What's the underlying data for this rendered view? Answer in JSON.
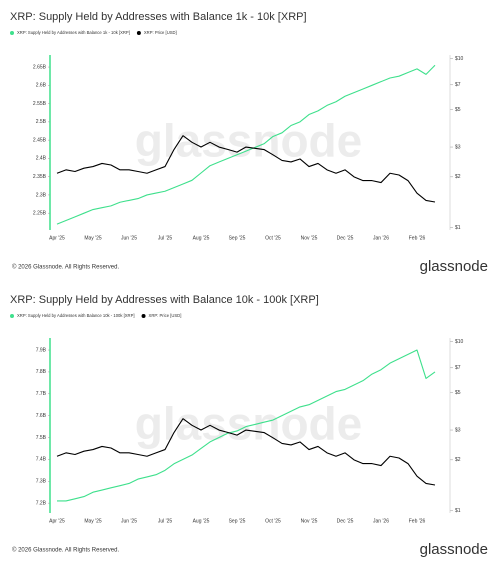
{
  "chart_data": [
    {
      "type": "line",
      "title": "XRP: Supply Held by Addresses with Balance 1k - 10k [XRP]",
      "categories": [
        "Apr '25",
        null,
        null,
        null,
        "May '25",
        null,
        null,
        null,
        "Jun '25",
        null,
        null,
        null,
        "Jul '25",
        null,
        null,
        null,
        "Aug '25",
        null,
        null,
        null,
        "Sep '25",
        null,
        null,
        null,
        "Oct '25",
        null,
        null,
        null,
        "Nov '25",
        null,
        null,
        null,
        "Dec '25",
        null,
        null,
        null,
        "Jan '26",
        null,
        null,
        null,
        "Feb '26",
        null,
        null
      ],
      "series": [
        {
          "name": "XRP: Supply Held by Addresses with Balance 1k - 10k [XRP]",
          "color": "#3ee08c",
          "axis": "y",
          "values": [
            2.22,
            2.23,
            2.24,
            2.25,
            2.26,
            2.265,
            2.27,
            2.28,
            2.285,
            2.29,
            2.3,
            2.305,
            2.31,
            2.32,
            2.33,
            2.34,
            2.36,
            2.38,
            2.39,
            2.4,
            2.41,
            2.42,
            2.43,
            2.44,
            2.46,
            2.47,
            2.49,
            2.5,
            2.52,
            2.53,
            2.545,
            2.555,
            2.57,
            2.58,
            2.59,
            2.6,
            2.61,
            2.62,
            2.625,
            2.635,
            2.645,
            2.63,
            2.655
          ]
        },
        {
          "name": "XRP: Price [USD]",
          "color": "#000000",
          "axis": "y2",
          "values": [
            2.1,
            2.2,
            2.15,
            2.25,
            2.3,
            2.4,
            2.35,
            2.2,
            2.2,
            2.15,
            2.1,
            2.2,
            2.3,
            2.9,
            3.5,
            3.2,
            3.0,
            3.2,
            3.0,
            2.9,
            2.8,
            3.0,
            2.95,
            2.9,
            2.7,
            2.5,
            2.45,
            2.55,
            2.3,
            2.4,
            2.2,
            2.1,
            2.2,
            2.0,
            1.9,
            1.9,
            1.85,
            2.1,
            2.05,
            1.9,
            1.6,
            1.45,
            1.42
          ]
        }
      ],
      "ylim": [
        2.204,
        2.683
      ],
      "yticks": [
        {
          "value": 2.25,
          "label": "2.25B"
        },
        {
          "value": 2.3,
          "label": "2.3B"
        },
        {
          "value": 2.35,
          "label": "2.35B"
        },
        {
          "value": 2.4,
          "label": "2.4B"
        },
        {
          "value": 2.45,
          "label": "2.45B"
        },
        {
          "value": 2.5,
          "label": "2.5B"
        },
        {
          "value": 2.55,
          "label": "2.55B"
        },
        {
          "value": 2.6,
          "label": "2.6B"
        },
        {
          "value": 2.65,
          "label": "2.65B"
        }
      ],
      "y2lim": [
        0.97,
        10.5
      ],
      "y2_log": true,
      "y2ticks": [
        {
          "value": 1,
          "label": "$1"
        },
        {
          "value": 2,
          "label": "$2"
        },
        {
          "value": 3,
          "label": "$3"
        },
        {
          "value": 5,
          "label": "$5"
        },
        {
          "value": 7,
          "label": "$7"
        },
        {
          "value": 10,
          "label": "$10"
        }
      ],
      "watermark": "glassnode",
      "footer": "© 2026 Glassnode. All Rights Reserved.",
      "brand": "glassnode"
    },
    {
      "type": "line",
      "title": "XRP: Supply Held by Addresses with Balance 10k - 100k [XRP]",
      "categories": [
        "Apr '25",
        null,
        null,
        null,
        "May '25",
        null,
        null,
        null,
        "Jun '25",
        null,
        null,
        null,
        "Jul '25",
        null,
        null,
        null,
        "Aug '25",
        null,
        null,
        null,
        "Sep '25",
        null,
        null,
        null,
        "Oct '25",
        null,
        null,
        null,
        "Nov '25",
        null,
        null,
        null,
        "Dec '25",
        null,
        null,
        null,
        "Jan '26",
        null,
        null,
        null,
        "Feb '26",
        null,
        null
      ],
      "series": [
        {
          "name": "XRP: Supply Held by Addresses with Balance 10k - 100k [XRP]",
          "color": "#3ee08c",
          "axis": "y",
          "values": [
            7.21,
            7.21,
            7.22,
            7.23,
            7.25,
            7.26,
            7.27,
            7.28,
            7.29,
            7.31,
            7.32,
            7.33,
            7.35,
            7.38,
            7.4,
            7.42,
            7.45,
            7.48,
            7.5,
            7.52,
            7.53,
            7.55,
            7.56,
            7.57,
            7.58,
            7.6,
            7.62,
            7.64,
            7.65,
            7.67,
            7.69,
            7.71,
            7.72,
            7.74,
            7.76,
            7.79,
            7.81,
            7.84,
            7.86,
            7.88,
            7.9,
            7.77,
            7.8
          ]
        },
        {
          "name": "XRP: Price [USD]",
          "color": "#000000",
          "axis": "y2",
          "values": [
            2.1,
            2.2,
            2.15,
            2.25,
            2.3,
            2.4,
            2.35,
            2.2,
            2.2,
            2.15,
            2.1,
            2.2,
            2.3,
            2.9,
            3.5,
            3.2,
            3.0,
            3.2,
            3.0,
            2.9,
            2.8,
            3.0,
            2.95,
            2.9,
            2.7,
            2.5,
            2.45,
            2.55,
            2.3,
            2.4,
            2.2,
            2.1,
            2.2,
            2.0,
            1.9,
            1.9,
            1.85,
            2.1,
            2.05,
            1.9,
            1.6,
            1.45,
            1.42
          ]
        }
      ],
      "ylim": [
        7.155,
        7.955
      ],
      "yticks": [
        {
          "value": 7.2,
          "label": "7.2B"
        },
        {
          "value": 7.3,
          "label": "7.3B"
        },
        {
          "value": 7.4,
          "label": "7.4B"
        },
        {
          "value": 7.5,
          "label": "7.5B"
        },
        {
          "value": 7.6,
          "label": "7.6B"
        },
        {
          "value": 7.7,
          "label": "7.7B"
        },
        {
          "value": 7.8,
          "label": "7.8B"
        },
        {
          "value": 7.9,
          "label": "7.9B"
        }
      ],
      "y2lim": [
        0.97,
        10.5
      ],
      "y2_log": true,
      "y2ticks": [
        {
          "value": 1,
          "label": "$1"
        },
        {
          "value": 2,
          "label": "$2"
        },
        {
          "value": 3,
          "label": "$3"
        },
        {
          "value": 5,
          "label": "$5"
        },
        {
          "value": 7,
          "label": "$7"
        },
        {
          "value": 10,
          "label": "$10"
        }
      ],
      "watermark": "glassnode",
      "footer": "© 2026 Glassnode. All Rights Reserved.",
      "brand": "glassnode"
    }
  ]
}
